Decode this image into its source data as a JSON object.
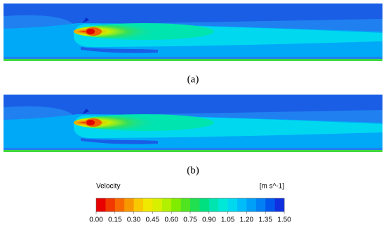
{
  "panels": [
    {
      "label": "(a)"
    },
    {
      "label": "(b)"
    }
  ],
  "colorbar": {
    "title": "Velocity",
    "unit": "[m s^-1]",
    "ticks": [
      {
        "value": 0,
        "label": "0.00"
      },
      {
        "value": 0.15,
        "label": "0.15"
      },
      {
        "value": 0.3,
        "label": "0.30"
      },
      {
        "value": 0.45,
        "label": "0.45"
      },
      {
        "value": 0.6,
        "label": "0.60"
      },
      {
        "value": 0.75,
        "label": "0.75"
      },
      {
        "value": 0.9,
        "label": "0.90"
      },
      {
        "value": 1.05,
        "label": "1.05"
      },
      {
        "value": 1.2,
        "label": "1.20"
      },
      {
        "value": 1.35,
        "label": "1.35"
      },
      {
        "value": 1.5,
        "label": "1.50"
      }
    ],
    "colors": [
      "#e80000",
      "#f03800",
      "#f86800",
      "#f89800",
      "#f8c800",
      "#f0e800",
      "#d8f000",
      "#b0f000",
      "#80ec00",
      "#50e420",
      "#20e050",
      "#00e080",
      "#00e4b0",
      "#00e8d8",
      "#00d8f0",
      "#00bcf8",
      "#00a0f8",
      "#0080f4",
      "#0058ec",
      "#1030e0"
    ]
  }
}
